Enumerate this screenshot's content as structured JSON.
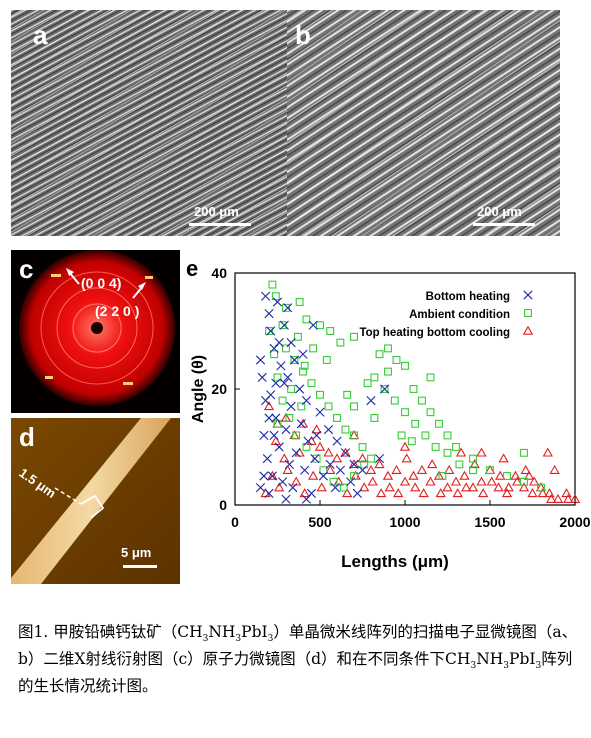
{
  "panel_a": {
    "letter": "a",
    "scale_label": "200 μm"
  },
  "panel_b": {
    "letter": "b",
    "scale_label": "200 μm"
  },
  "panel_c": {
    "letter": "c",
    "label_004": "(0 0 4)",
    "label_220": "(2 2 0 )"
  },
  "panel_d": {
    "letter": "d",
    "label_width": "1.5 μm",
    "scale_label": "5 μm"
  },
  "panel_e": {
    "letter": "e"
  },
  "chart_data": {
    "type": "scatter",
    "xlabel": "Lengths (μm)",
    "ylabel": "Angle (θ)",
    "xlim": [
      0,
      2000
    ],
    "ylim": [
      0,
      40
    ],
    "x_ticks": [
      "0",
      "500",
      "1000",
      "1500",
      "2000"
    ],
    "y_ticks": [
      "0",
      "20",
      "40"
    ],
    "legend_position": "top-right",
    "series": [
      {
        "name": "Bottom heating",
        "marker": "x",
        "color": "#1c2aa8",
        "points": [
          [
            180,
            36
          ],
          [
            200,
            33
          ],
          [
            210,
            30
          ],
          [
            230,
            27
          ],
          [
            250,
            35
          ],
          [
            270,
            24
          ],
          [
            290,
            31
          ],
          [
            310,
            22
          ],
          [
            330,
            28
          ],
          [
            350,
            25
          ],
          [
            380,
            20
          ],
          [
            400,
            26
          ],
          [
            420,
            18
          ],
          [
            460,
            31
          ],
          [
            500,
            16
          ],
          [
            550,
            13
          ],
          [
            600,
            11
          ],
          [
            650,
            9
          ],
          [
            700,
            7
          ],
          [
            750,
            6
          ],
          [
            800,
            18
          ],
          [
            850,
            8
          ],
          [
            880,
            20
          ],
          [
            160,
            22
          ],
          [
            170,
            12
          ],
          [
            190,
            8
          ],
          [
            200,
            2
          ],
          [
            220,
            5
          ],
          [
            240,
            15
          ],
          [
            260,
            10
          ],
          [
            280,
            4
          ],
          [
            300,
            13
          ],
          [
            320,
            7
          ],
          [
            340,
            3
          ],
          [
            360,
            9
          ],
          [
            390,
            14
          ],
          [
            410,
            6
          ],
          [
            430,
            11
          ],
          [
            450,
            2
          ],
          [
            470,
            8
          ],
          [
            480,
            12
          ],
          [
            520,
            5
          ],
          [
            560,
            7
          ],
          [
            590,
            3
          ],
          [
            620,
            6
          ],
          [
            680,
            4
          ],
          [
            720,
            2
          ],
          [
            180,
            18
          ],
          [
            150,
            25
          ],
          [
            210,
            19
          ],
          [
            330,
            17
          ],
          [
            290,
            21
          ],
          [
            260,
            28
          ],
          [
            230,
            12
          ],
          [
            200,
            15
          ],
          [
            170,
            5
          ],
          [
            300,
            1
          ],
          [
            420,
            1
          ],
          [
            150,
            3
          ],
          [
            310,
            34
          ],
          [
            240,
            21
          ]
        ]
      },
      {
        "name": "Ambient condition",
        "marker": "square",
        "color": "#33cc33",
        "points": [
          [
            220,
            38
          ],
          [
            240,
            36
          ],
          [
            300,
            34
          ],
          [
            380,
            35
          ],
          [
            420,
            32
          ],
          [
            500,
            31
          ],
          [
            560,
            30
          ],
          [
            620,
            28
          ],
          [
            700,
            29
          ],
          [
            850,
            26
          ],
          [
            900,
            27
          ],
          [
            950,
            25
          ],
          [
            1000,
            24
          ],
          [
            1050,
            20
          ],
          [
            1100,
            18
          ],
          [
            1150,
            16
          ],
          [
            1200,
            14
          ],
          [
            1250,
            12
          ],
          [
            1300,
            10
          ],
          [
            1400,
            8
          ],
          [
            1500,
            6
          ],
          [
            1600,
            5
          ],
          [
            1700,
            4
          ],
          [
            1800,
            3
          ],
          [
            300,
            27
          ],
          [
            350,
            25
          ],
          [
            400,
            23
          ],
          [
            450,
            21
          ],
          [
            500,
            19
          ],
          [
            550,
            17
          ],
          [
            600,
            15
          ],
          [
            650,
            13
          ],
          [
            700,
            12
          ],
          [
            750,
            10
          ],
          [
            800,
            8
          ],
          [
            200,
            30
          ],
          [
            250,
            22
          ],
          [
            280,
            18
          ],
          [
            320,
            15
          ],
          [
            360,
            12
          ],
          [
            420,
            10
          ],
          [
            480,
            8
          ],
          [
            520,
            6
          ],
          [
            580,
            4
          ],
          [
            640,
            3
          ],
          [
            700,
            5
          ],
          [
            760,
            7
          ],
          [
            820,
            15
          ],
          [
            880,
            20
          ],
          [
            940,
            18
          ],
          [
            1000,
            16
          ],
          [
            1060,
            14
          ],
          [
            1120,
            12
          ],
          [
            1180,
            10
          ],
          [
            1250,
            9
          ],
          [
            1320,
            7
          ],
          [
            1400,
            6
          ],
          [
            1150,
            22
          ],
          [
            900,
            23
          ],
          [
            780,
            21
          ],
          [
            660,
            19
          ],
          [
            540,
            25
          ],
          [
            460,
            27
          ],
          [
            370,
            29
          ],
          [
            280,
            31
          ],
          [
            230,
            26
          ],
          [
            250,
            14
          ],
          [
            330,
            20
          ],
          [
            410,
            24
          ],
          [
            390,
            17
          ],
          [
            700,
            17
          ],
          [
            820,
            22
          ],
          [
            980,
            12
          ],
          [
            1040,
            11
          ],
          [
            1220,
            5
          ],
          [
            1700,
            9
          ]
        ]
      },
      {
        "name": "Top heating bottom cooling",
        "marker": "triangle",
        "color": "#e02020",
        "points": [
          [
            200,
            17
          ],
          [
            250,
            14
          ],
          [
            300,
            15
          ],
          [
            350,
            12
          ],
          [
            400,
            14
          ],
          [
            450,
            11
          ],
          [
            500,
            10
          ],
          [
            550,
            9
          ],
          [
            600,
            8
          ],
          [
            650,
            9
          ],
          [
            700,
            7
          ],
          [
            750,
            8
          ],
          [
            800,
            6
          ],
          [
            850,
            7
          ],
          [
            900,
            5
          ],
          [
            950,
            6
          ],
          [
            1000,
            4
          ],
          [
            1050,
            5
          ],
          [
            1100,
            6
          ],
          [
            1150,
            4
          ],
          [
            1200,
            5
          ],
          [
            1250,
            3
          ],
          [
            1300,
            4
          ],
          [
            1350,
            5
          ],
          [
            1400,
            3
          ],
          [
            1450,
            4
          ],
          [
            1500,
            6
          ],
          [
            1550,
            3
          ],
          [
            1600,
            2
          ],
          [
            1650,
            5
          ],
          [
            1700,
            3
          ],
          [
            1750,
            2
          ],
          [
            1800,
            3
          ],
          [
            1850,
            2
          ],
          [
            1900,
            1
          ],
          [
            1950,
            2
          ],
          [
            2000,
            1
          ],
          [
            220,
            5
          ],
          [
            260,
            3
          ],
          [
            310,
            6
          ],
          [
            360,
            4
          ],
          [
            410,
            2
          ],
          [
            460,
            5
          ],
          [
            510,
            3
          ],
          [
            560,
            6
          ],
          [
            610,
            4
          ],
          [
            660,
            2
          ],
          [
            710,
            5
          ],
          [
            760,
            3
          ],
          [
            810,
            4
          ],
          [
            860,
            2
          ],
          [
            910,
            3
          ],
          [
            960,
            2
          ],
          [
            1010,
            8
          ],
          [
            1060,
            3
          ],
          [
            1110,
            2
          ],
          [
            1160,
            7
          ],
          [
            1210,
            2
          ],
          [
            1260,
            6
          ],
          [
            1310,
            2
          ],
          [
            1360,
            3
          ],
          [
            1410,
            7
          ],
          [
            1460,
            2
          ],
          [
            1510,
            4
          ],
          [
            1560,
            5
          ],
          [
            1610,
            3
          ],
          [
            1660,
            4
          ],
          [
            1710,
            6
          ],
          [
            1760,
            4
          ],
          [
            1810,
            2
          ],
          [
            1860,
            1
          ],
          [
            1960,
            1
          ],
          [
            1840,
            9
          ],
          [
            1330,
            9
          ],
          [
            1000,
            10
          ],
          [
            700,
            12
          ],
          [
            480,
            13
          ],
          [
            380,
            9
          ],
          [
            290,
            8
          ],
          [
            240,
            11
          ],
          [
            180,
            2
          ],
          [
            1580,
            8
          ],
          [
            1880,
            6
          ],
          [
            1450,
            9
          ],
          [
            1730,
            5
          ]
        ]
      }
    ]
  }
}
